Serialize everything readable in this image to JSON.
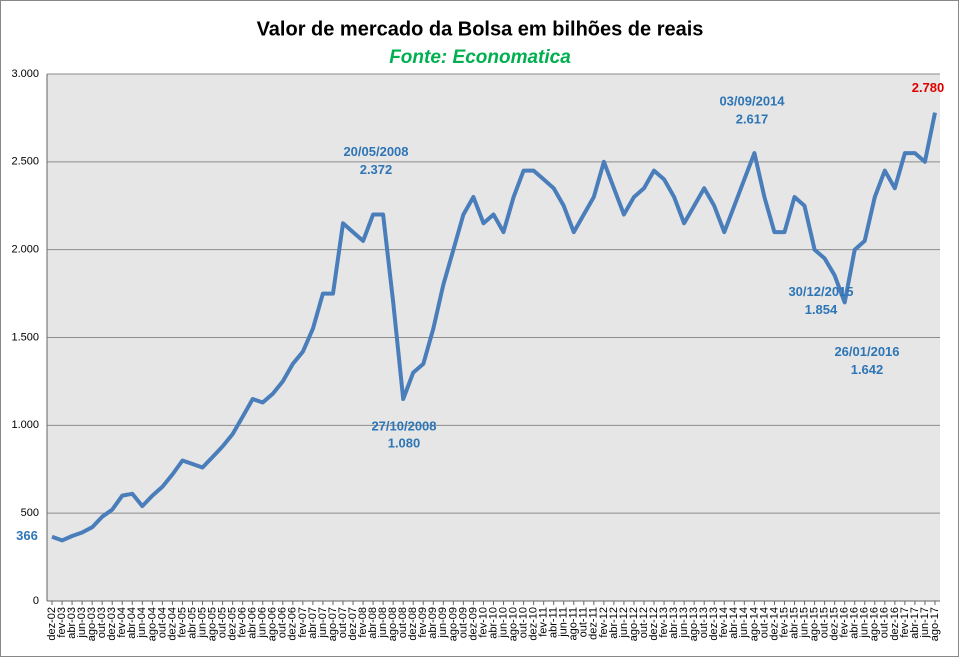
{
  "chart_data": {
    "type": "line",
    "title": "Valor de mercado da Bolsa em bilhões de reais",
    "subtitle": "Fonte: Economatica",
    "categories": [
      "dez-02",
      "fev-03",
      "abr-03",
      "jun-03",
      "ago-03",
      "out-03",
      "dez-03",
      "fev-04",
      "abr-04",
      "jun-04",
      "ago-04",
      "out-04",
      "dez-04",
      "fev-05",
      "abr-05",
      "jun-05",
      "ago-05",
      "out-05",
      "dez-05",
      "fev-06",
      "abr-06",
      "jun-06",
      "ago-06",
      "out-06",
      "dez-06",
      "fev-07",
      "abr-07",
      "jun-07",
      "ago-07",
      "out-07",
      "dez-07",
      "fev-08",
      "abr-08",
      "jun-08",
      "ago-08",
      "out-08",
      "dez-08",
      "fev-09",
      "abr-09",
      "jun-09",
      "ago-09",
      "out-09",
      "dez-09",
      "fev-10",
      "abr-10",
      "jun-10",
      "ago-10",
      "out-10",
      "dez-10",
      "fev-11",
      "abr-11",
      "jun-11",
      "ago-11",
      "out-11",
      "dez-11",
      "fev-12",
      "abr-12",
      "jun-12",
      "ago-12",
      "out-12",
      "dez-12",
      "fev-13",
      "abr-13",
      "jun-13",
      "ago-13",
      "out-13",
      "dez-13",
      "fev-14",
      "abr-14",
      "jun-14",
      "ago-14",
      "out-14",
      "dez-14",
      "fev-15",
      "abr-15",
      "jun-15",
      "ago-15",
      "out-15",
      "dez-15",
      "fev-16",
      "abr-16",
      "jun-16",
      "ago-16",
      "out-16",
      "dez-16",
      "fev-17",
      "abr-17",
      "jun-17",
      "ago-17"
    ],
    "series": [
      {
        "color": "#4a7ebb",
        "values": [
          366,
          345,
          370,
          390,
          420,
          480,
          520,
          600,
          610,
          540,
          600,
          650,
          720,
          800,
          780,
          760,
          820,
          880,
          950,
          1050,
          1150,
          1130,
          1180,
          1250,
          1350,
          1420,
          1550,
          1750,
          1750,
          2150,
          2100,
          2050,
          2200,
          2200,
          1700,
          1150,
          1300,
          1350,
          1550,
          1800,
          2000,
          2200,
          2300,
          2150,
          2200,
          2100,
          2300,
          2450,
          2450,
          2400,
          2350,
          2250,
          2100,
          2200,
          2300,
          2500,
          2350,
          2200,
          2300,
          2350,
          2450,
          2400,
          2300,
          2150,
          2250,
          2350,
          2250,
          2100,
          2250,
          2400,
          2550,
          2300,
          2100,
          2100,
          2300,
          2250,
          2000,
          1950,
          1854,
          1700,
          2000,
          2050,
          2300,
          2450,
          2350,
          2550,
          2550,
          2500,
          2780
        ]
      }
    ],
    "ylim": [
      0,
      3000
    ],
    "yticks": [
      0,
      500,
      {
        "value": 1000,
        "label": "1.000"
      },
      {
        "value": 1500,
        "label": "1.500"
      },
      {
        "value": 2000,
        "label": "2.000"
      },
      {
        "value": 2500,
        "label": "2.500"
      },
      {
        "value": 3000,
        "label": "3.000"
      }
    ],
    "grid": true,
    "annotations": [
      {
        "date": "20/05/2008",
        "value": 2372,
        "label": "2.372"
      },
      {
        "date": "27/10/2008",
        "value": 1080,
        "label": "1.080"
      },
      {
        "date": "03/09/2014",
        "value": 2617,
        "label": "2.617"
      },
      {
        "date": "30/12/2015",
        "value": 1854,
        "label": "1.854"
      },
      {
        "date": "26/01/2016",
        "value": 1642,
        "label": "1.642"
      },
      {
        "value": 366
      },
      {
        "value": 2780,
        "label": "2.780",
        "color": "#e00000"
      }
    ]
  }
}
